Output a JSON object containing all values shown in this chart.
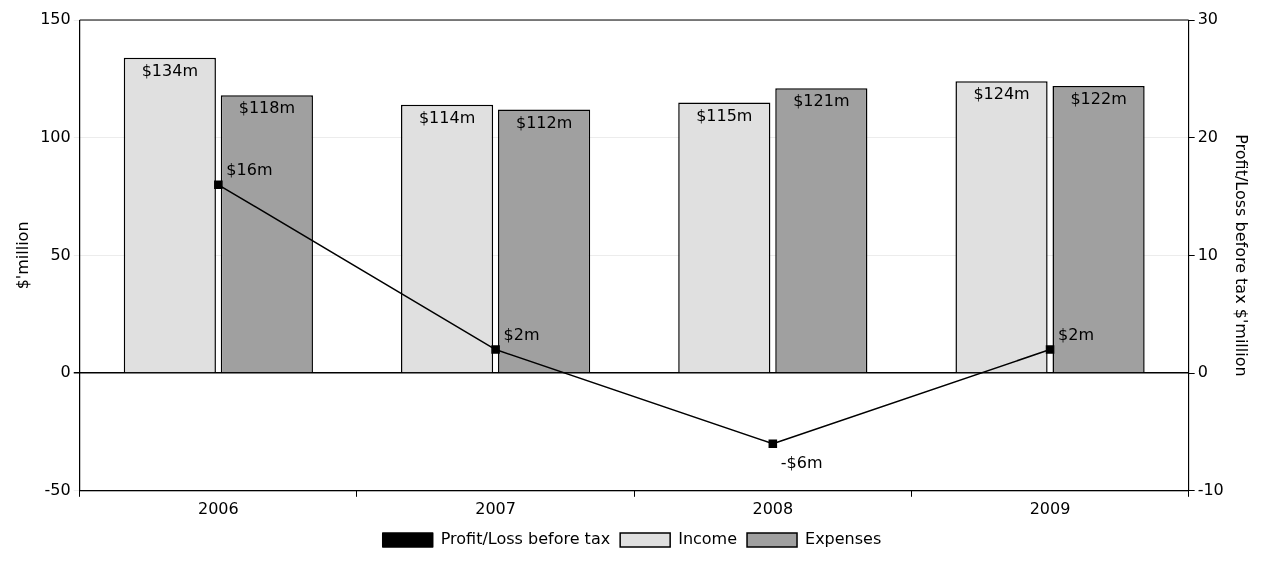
{
  "chart_data": {
    "type": "bar",
    "categories": [
      "2006",
      "2007",
      "2008",
      "2009"
    ],
    "series": [
      {
        "name": "Income",
        "color": "#e0e0e0",
        "values": [
          134,
          114,
          115,
          124
        ],
        "value_labels": [
          "$134m",
          "$114m",
          "$115m",
          "$124m"
        ]
      },
      {
        "name": "Expenses",
        "color": "#a0a0a0",
        "values": [
          118,
          112,
          121,
          122
        ],
        "value_labels": [
          "$118m",
          "$112m",
          "$121m",
          "$122m"
        ]
      },
      {
        "name": "Profit/Loss before tax",
        "type": "line",
        "axis": "y2",
        "color": "#000000",
        "marker": "square",
        "values": [
          16,
          2,
          -6,
          2
        ],
        "value_labels": [
          "$16m",
          "$2m",
          "-$6m",
          "$2m"
        ]
      }
    ],
    "ylabel": "$'million",
    "y2label": "Profit/Loss before tax $'million",
    "ylim": [
      -50,
      150
    ],
    "yticks": [
      -50,
      0,
      50,
      100,
      150
    ],
    "y2lim": [
      -10,
      30
    ],
    "y2ticks": [
      -10,
      0,
      10,
      20,
      30
    ],
    "grid": "y",
    "legend": "bottom"
  }
}
